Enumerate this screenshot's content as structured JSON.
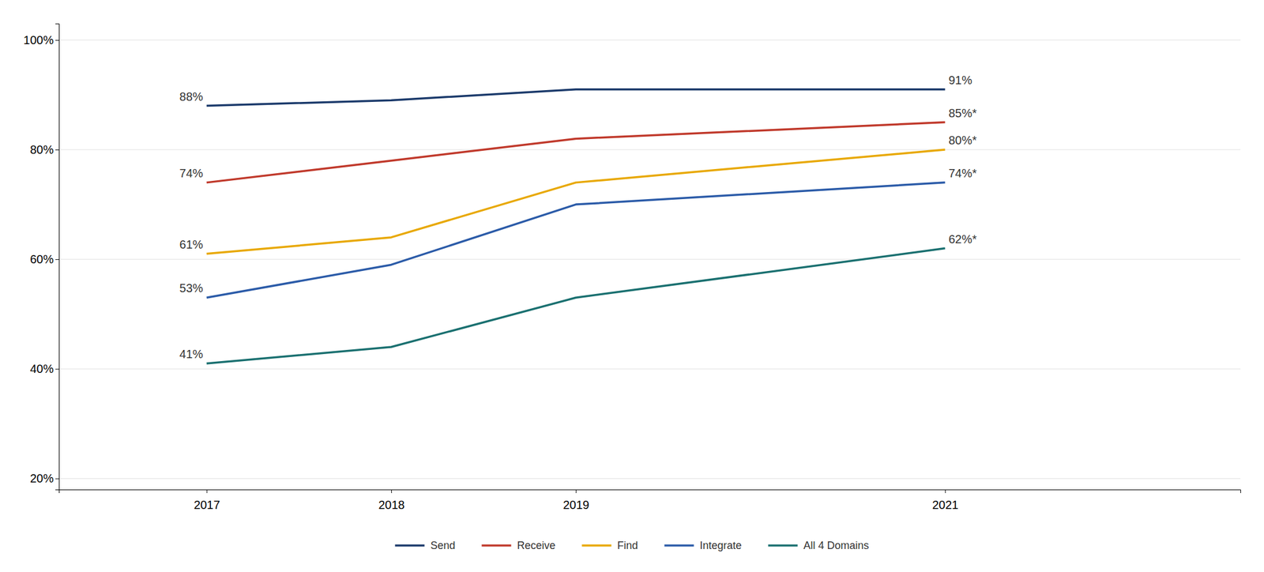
{
  "chart_data": {
    "type": "line",
    "x": [
      2017,
      2018,
      2019,
      2021
    ],
    "xlim": [
      2016.2,
      2022.6
    ],
    "xticks": [
      2017,
      2018,
      2019,
      2021
    ],
    "ylim": [
      18,
      103
    ],
    "yticks": [
      {
        "value": 20,
        "label": "20%"
      },
      {
        "value": 40,
        "label": "40%"
      },
      {
        "value": 60,
        "label": "60%"
      },
      {
        "value": 80,
        "label": "80%"
      },
      {
        "value": 100,
        "label": "100%"
      }
    ],
    "grid": true,
    "legend": "bottom",
    "data_labels": true,
    "series": [
      {
        "name": "Send",
        "color": "#1B3A6B",
        "values": [
          88,
          89,
          91,
          91
        ],
        "value_labels": [
          "88%",
          null,
          null,
          "91%"
        ]
      },
      {
        "name": "Receive",
        "color": "#C0392B",
        "values": [
          74,
          78,
          82,
          85
        ],
        "value_labels": [
          "74%",
          null,
          null,
          "85%*"
        ]
      },
      {
        "name": "Find",
        "color": "#E8A800",
        "values": [
          61,
          64,
          74,
          80
        ],
        "value_labels": [
          "61%",
          null,
          null,
          "80%*"
        ]
      },
      {
        "name": "Integrate",
        "color": "#2B5BA8",
        "values": [
          53,
          59,
          70,
          74
        ],
        "value_labels": [
          "53%",
          null,
          null,
          "74%*"
        ]
      },
      {
        "name": "All 4 Domains",
        "color": "#1A7070",
        "values": [
          41,
          44,
          53,
          62
        ],
        "value_labels": [
          "41%",
          null,
          null,
          "62%*"
        ]
      }
    ]
  }
}
